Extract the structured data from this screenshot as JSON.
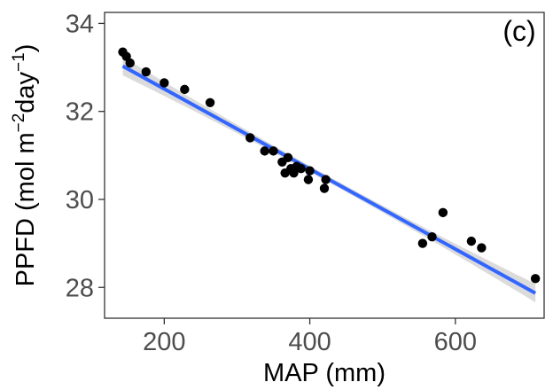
{
  "chart_data": {
    "type": "scatter",
    "panel_label": "(c)",
    "xlabel": "MAP (mm)",
    "ylabel": "PPFD (mol m^-2 day^-1)",
    "ylabel_parts": {
      "base": "PPFD (mol m",
      "exp1": "−2",
      "mid": "day",
      "exp2": "−1",
      "close": ")"
    },
    "xlim": [
      118,
      722
    ],
    "ylim": [
      27.3,
      34.25
    ],
    "xticks": [
      200,
      400,
      600
    ],
    "yticks": [
      28,
      30,
      32,
      34
    ],
    "grid": false,
    "points": [
      [
        143,
        33.35
      ],
      [
        148,
        33.25
      ],
      [
        153,
        33.1
      ],
      [
        175,
        32.9
      ],
      [
        200,
        32.65
      ],
      [
        228,
        32.5
      ],
      [
        263,
        32.2
      ],
      [
        318,
        31.4
      ],
      [
        338,
        31.1
      ],
      [
        350,
        31.1
      ],
      [
        362,
        30.85
      ],
      [
        366,
        30.6
      ],
      [
        370,
        30.95
      ],
      [
        374,
        30.7
      ],
      [
        378,
        30.6
      ],
      [
        382,
        30.75
      ],
      [
        388,
        30.7
      ],
      [
        398,
        30.45
      ],
      [
        400,
        30.65
      ],
      [
        420,
        30.25
      ],
      [
        422,
        30.45
      ],
      [
        555,
        29.0
      ],
      [
        568,
        29.15
      ],
      [
        583,
        29.7
      ],
      [
        622,
        29.05
      ],
      [
        636,
        28.9
      ],
      [
        710,
        28.2
      ]
    ],
    "fit": {
      "method": "linear",
      "x_range": [
        143,
        710
      ],
      "y_at_start": 33.03,
      "y_at_end": 27.87
    },
    "colors": {
      "points": "#000000",
      "fit_line": "#3366FF",
      "confidence_band": "#bdbdbd",
      "axis": "#333333"
    }
  }
}
